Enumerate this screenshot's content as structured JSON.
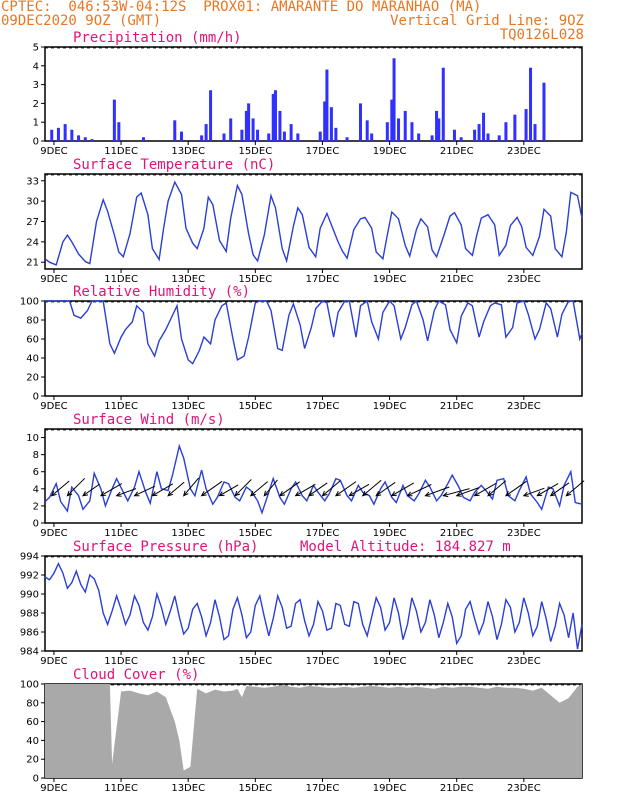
{
  "header": {
    "line1": "CPTEC:  046:53W-04:12S  PROX01: AMARANTE DO MARANHAO (MA)",
    "line2_left": "09DEC2020 9OZ (GMT)",
    "line2_right": "Vertical Grid Line: 9OZ",
    "line3_right": "TQ0126L028"
  },
  "x_ticks": [
    "9DEC",
    "11DEC",
    "13DEC",
    "15DEC",
    "17DEC",
    "19DEC",
    "21DEC",
    "23DEC"
  ],
  "chart_data": [
    {
      "type": "bar",
      "title": "Precipitation (mm/h)",
      "ylim": [
        0,
        5
      ],
      "yticks": [
        0,
        1,
        2,
        3,
        4,
        5
      ],
      "color": "#3030ff",
      "x": [
        0.3,
        0.6,
        0.9,
        1.2,
        1.5,
        1.8,
        2.1,
        3.1,
        3.3,
        4.4,
        5.8,
        6.1,
        7.0,
        7.2,
        7.4,
        8.0,
        8.3,
        8.8,
        9.0,
        9.1,
        9.3,
        9.5,
        10.0,
        10.2,
        10.3,
        10.5,
        10.7,
        11.0,
        11.3,
        12.3,
        12.5,
        12.6,
        12.8,
        13.0,
        13.5,
        14.1,
        14.4,
        14.6,
        15.3,
        15.5,
        15.6,
        15.8,
        16.1,
        16.4,
        16.7,
        17.3,
        17.5,
        17.6,
        17.8,
        18.3,
        18.6,
        19.2,
        19.4,
        19.6,
        19.8,
        20.3,
        20.6,
        21.0,
        21.5,
        21.7,
        21.9,
        22.3
      ],
      "values": [
        0.6,
        0.7,
        0.9,
        0.6,
        0.3,
        0.2,
        0.1,
        2.2,
        1.0,
        0.2,
        1.1,
        0.5,
        0.3,
        0.9,
        2.7,
        0.4,
        1.2,
        0.6,
        1.6,
        2.0,
        1.2,
        0.6,
        0.4,
        2.5,
        2.7,
        1.6,
        0.5,
        0.9,
        0.4,
        0.5,
        2.1,
        3.8,
        1.8,
        0.7,
        0.2,
        2.0,
        1.1,
        0.4,
        1.0,
        2.2,
        4.4,
        1.2,
        1.6,
        1.0,
        0.4,
        0.3,
        1.6,
        1.2,
        3.9,
        0.6,
        0.2,
        0.6,
        0.9,
        1.5,
        0.4,
        0.3,
        1.0,
        1.4,
        1.7,
        3.9,
        0.9,
        3.1
      ]
    },
    {
      "type": "line",
      "title": "Surface Temperature (nC)",
      "ylim": [
        20,
        34
      ],
      "yticks": [
        21,
        24,
        27,
        30,
        33
      ],
      "color": "#2a3fd6",
      "x": [
        0,
        0.2,
        0.5,
        0.8,
        1.0,
        1.2,
        1.5,
        1.8,
        2.0,
        2.3,
        2.6,
        2.8,
        3.1,
        3.3,
        3.5,
        3.8,
        4.1,
        4.3,
        4.6,
        4.8,
        5.1,
        5.3,
        5.5,
        5.8,
        6.1,
        6.3,
        6.6,
        6.8,
        7.1,
        7.3,
        7.5,
        7.8,
        8.1,
        8.3,
        8.6,
        8.8,
        9.1,
        9.3,
        9.5,
        9.8,
        10.1,
        10.3,
        10.6,
        10.8,
        11.1,
        11.3,
        11.5,
        11.8,
        12.1,
        12.3,
        12.6,
        12.8,
        13.1,
        13.3,
        13.5,
        13.8,
        14.1,
        14.3,
        14.6,
        14.8,
        15.1,
        15.3,
        15.5,
        15.8,
        16.1,
        16.3,
        16.6,
        16.8,
        17.1,
        17.3,
        17.5,
        17.8,
        18.1,
        18.3,
        18.6,
        18.8,
        19.1,
        19.3,
        19.5,
        19.8,
        20.1,
        20.3,
        20.6,
        20.8,
        21.1,
        21.3,
        21.5,
        21.8,
        22.1,
        22.3,
        22.6,
        22.8,
        23.1,
        23.3,
        23.5,
        23.8,
        24.0
      ],
      "values": [
        21.5,
        21.0,
        20.6,
        24.0,
        25.0,
        24.0,
        22.2,
        21.1,
        20.8,
        27.0,
        30.2,
        28.5,
        25.0,
        22.5,
        21.8,
        25.2,
        30.6,
        31.2,
        28.0,
        23.0,
        21.4,
        26.0,
        30.0,
        32.8,
        31.0,
        26.0,
        23.8,
        23.0,
        26.0,
        30.6,
        29.5,
        24.2,
        22.6,
        27.5,
        32.3,
        31.0,
        25.2,
        22.1,
        21.2,
        25.0,
        30.8,
        29.0,
        23.0,
        21.2,
        26.3,
        29.0,
        28.0,
        23.2,
        21.8,
        26.0,
        28.2,
        26.5,
        24.0,
        22.6,
        21.6,
        25.8,
        27.4,
        27.6,
        26.0,
        22.5,
        21.5,
        25.0,
        28.4,
        27.4,
        23.5,
        21.9,
        25.8,
        27.4,
        26.2,
        22.8,
        21.8,
        24.7,
        27.8,
        28.3,
        26.5,
        23.0,
        22.0,
        25.0,
        27.5,
        28.0,
        26.5,
        22.0,
        23.5,
        26.4,
        27.6,
        26.3,
        23.2,
        22.0,
        24.8,
        28.8,
        27.8,
        23.0,
        21.8,
        25.4,
        31.3,
        30.8,
        27.5
      ]
    },
    {
      "type": "line",
      "title": "Relative Humidity (%)",
      "ylim": [
        0,
        100
      ],
      "yticks": [
        0,
        20,
        40,
        60,
        80,
        100
      ],
      "color": "#2a3fd6",
      "x": [
        0,
        0.3,
        0.6,
        0.9,
        1.1,
        1.3,
        1.6,
        1.9,
        2.1,
        2.4,
        2.6,
        2.9,
        3.1,
        3.4,
        3.6,
        3.9,
        4.1,
        4.4,
        4.6,
        4.9,
        5.1,
        5.4,
        5.6,
        5.9,
        6.1,
        6.4,
        6.6,
        6.9,
        7.1,
        7.4,
        7.6,
        7.9,
        8.1,
        8.4,
        8.6,
        8.9,
        9.1,
        9.4,
        9.6,
        9.9,
        10.1,
        10.4,
        10.6,
        10.9,
        11.1,
        11.4,
        11.6,
        11.9,
        12.1,
        12.4,
        12.6,
        12.9,
        13.1,
        13.4,
        13.6,
        13.9,
        14.1,
        14.4,
        14.6,
        14.9,
        15.1,
        15.4,
        15.6,
        15.9,
        16.1,
        16.4,
        16.6,
        16.9,
        17.1,
        17.4,
        17.6,
        17.9,
        18.1,
        18.4,
        18.6,
        18.9,
        19.1,
        19.4,
        19.6,
        19.9,
        20.1,
        20.4,
        20.6,
        20.9,
        21.1,
        21.4,
        21.6,
        21.9,
        22.1,
        22.4,
        22.6,
        22.9,
        23.1,
        23.4,
        23.6,
        23.9,
        24.0
      ],
      "values": [
        100,
        100,
        100,
        100,
        100,
        85,
        82,
        90,
        100,
        100,
        100,
        55,
        45,
        62,
        70,
        78,
        95,
        88,
        55,
        42,
        58,
        70,
        80,
        95,
        60,
        38,
        34,
        48,
        62,
        55,
        80,
        95,
        98,
        60,
        38,
        42,
        62,
        98,
        100,
        100,
        90,
        50,
        48,
        85,
        97,
        75,
        50,
        72,
        92,
        100,
        98,
        62,
        88,
        100,
        100,
        62,
        95,
        100,
        78,
        60,
        88,
        100,
        95,
        60,
        72,
        96,
        100,
        80,
        58,
        90,
        100,
        96,
        70,
        56,
        84,
        98,
        95,
        62,
        78,
        95,
        98,
        96,
        62,
        72,
        98,
        100,
        86,
        60,
        70,
        98,
        92,
        62,
        86,
        100,
        100,
        60,
        66
      ]
    },
    {
      "type": "line",
      "title": "Surface Wind (m/s)",
      "ylim": [
        0,
        11
      ],
      "yticks": [
        0,
        2,
        4,
        6,
        8,
        10
      ],
      "color": "#2a3fd6",
      "x": [
        0,
        0.2,
        0.5,
        0.7,
        1.0,
        1.2,
        1.5,
        1.7,
        2.0,
        2.2,
        2.5,
        2.7,
        3.0,
        3.2,
        3.5,
        3.7,
        4.0,
        4.2,
        4.5,
        4.7,
        5.0,
        5.2,
        5.5,
        5.7,
        6.0,
        6.2,
        6.5,
        6.7,
        7.0,
        7.2,
        7.5,
        7.7,
        8.0,
        8.2,
        8.5,
        8.7,
        9.0,
        9.2,
        9.5,
        9.7,
        10.0,
        10.2,
        10.5,
        10.7,
        11.0,
        11.2,
        11.5,
        11.7,
        12.0,
        12.2,
        12.5,
        12.7,
        13.0,
        13.2,
        13.5,
        13.7,
        14.0,
        14.2,
        14.5,
        14.7,
        15.0,
        15.2,
        15.5,
        15.7,
        16.0,
        16.2,
        16.5,
        16.7,
        17.0,
        17.2,
        17.5,
        17.7,
        18.0,
        18.2,
        18.5,
        18.7,
        19.0,
        19.2,
        19.5,
        19.7,
        20.0,
        20.2,
        20.5,
        20.7,
        21.0,
        21.2,
        21.5,
        21.7,
        22.0,
        22.2,
        22.5,
        22.7,
        23.0,
        23.2,
        23.5,
        23.7,
        24.0
      ],
      "values": [
        2.5,
        3.0,
        4.6,
        2.5,
        1.4,
        4.2,
        3.2,
        1.6,
        2.6,
        5.8,
        4.0,
        2.0,
        4.0,
        5.2,
        3.6,
        2.6,
        4.2,
        6.0,
        3.6,
        2.3,
        6.0,
        4.0,
        3.8,
        5.6,
        9.0,
        7.6,
        4.0,
        3.2,
        6.2,
        4.0,
        2.2,
        3.0,
        4.8,
        4.6,
        3.0,
        2.6,
        4.2,
        3.8,
        2.6,
        1.2,
        3.6,
        5.2,
        3.0,
        2.2,
        4.0,
        4.8,
        3.2,
        2.6,
        4.4,
        3.6,
        2.6,
        3.4,
        5.2,
        5.0,
        3.2,
        2.6,
        4.4,
        3.6,
        3.2,
        2.2,
        4.0,
        4.8,
        3.0,
        2.4,
        4.4,
        3.2,
        2.6,
        3.4,
        5.0,
        4.2,
        2.6,
        3.2,
        4.6,
        5.6,
        4.2,
        3.0,
        2.6,
        3.6,
        4.4,
        3.8,
        2.8,
        5.0,
        5.2,
        3.2,
        2.6,
        3.8,
        5.4,
        3.4,
        2.4,
        1.6,
        4.2,
        4.0,
        2.0,
        4.4,
        6.0,
        2.4,
        2.2
      ]
    },
    {
      "type": "line",
      "title": "Surface Pressure (hPa)",
      "subtitle": "Model Altitude: 184.827 m",
      "ylim": [
        984,
        994
      ],
      "yticks": [
        984,
        986,
        988,
        990,
        992,
        994
      ],
      "color": "#2a3fd6",
      "x": [
        0,
        0.2,
        0.4,
        0.6,
        0.8,
        1.0,
        1.2,
        1.4,
        1.6,
        1.8,
        2.0,
        2.2,
        2.4,
        2.6,
        2.8,
        3.0,
        3.2,
        3.4,
        3.6,
        3.8,
        4.0,
        4.2,
        4.4,
        4.6,
        4.8,
        5.0,
        5.2,
        5.4,
        5.6,
        5.8,
        6.0,
        6.2,
        6.4,
        6.6,
        6.8,
        7.0,
        7.2,
        7.4,
        7.6,
        7.8,
        8.0,
        8.2,
        8.4,
        8.6,
        8.8,
        9.0,
        9.2,
        9.4,
        9.6,
        9.8,
        10.0,
        10.2,
        10.4,
        10.6,
        10.8,
        11.0,
        11.2,
        11.4,
        11.6,
        11.8,
        12.0,
        12.2,
        12.4,
        12.6,
        12.8,
        13.0,
        13.2,
        13.4,
        13.6,
        13.8,
        14.0,
        14.2,
        14.4,
        14.6,
        14.8,
        15.0,
        15.2,
        15.4,
        15.6,
        15.8,
        16.0,
        16.2,
        16.4,
        16.6,
        16.8,
        17.0,
        17.2,
        17.4,
        17.6,
        17.8,
        18.0,
        18.2,
        18.4,
        18.6,
        18.8,
        19.0,
        19.2,
        19.4,
        19.6,
        19.8,
        20.0,
        20.2,
        20.4,
        20.6,
        20.8,
        21.0,
        21.2,
        21.4,
        21.6,
        21.8,
        22.0,
        22.2,
        22.4,
        22.6,
        22.8,
        23.0,
        23.2,
        23.4,
        23.6,
        23.8,
        24.0
      ],
      "values": [
        991.8,
        991.5,
        992.2,
        993.2,
        992.2,
        990.6,
        991.2,
        992.4,
        991.0,
        990.2,
        992.0,
        991.6,
        990.4,
        988.0,
        986.8,
        988.2,
        989.8,
        988.4,
        986.8,
        987.8,
        989.8,
        988.8,
        987.0,
        986.2,
        987.6,
        990.0,
        988.6,
        986.8,
        988.2,
        989.8,
        987.6,
        985.8,
        986.4,
        988.4,
        989.0,
        987.6,
        985.6,
        987.0,
        989.4,
        987.6,
        985.2,
        985.6,
        988.4,
        989.6,
        987.8,
        985.4,
        986.0,
        988.8,
        989.8,
        987.6,
        985.6,
        987.4,
        989.8,
        988.6,
        986.4,
        986.6,
        989.0,
        989.4,
        987.2,
        985.6,
        986.8,
        989.2,
        988.2,
        986.2,
        986.4,
        989.0,
        988.8,
        986.8,
        986.6,
        989.2,
        989.0,
        986.8,
        985.6,
        987.6,
        989.6,
        988.6,
        986.2,
        987.0,
        989.6,
        988.0,
        985.2,
        986.8,
        989.6,
        988.2,
        986.0,
        987.0,
        989.4,
        987.8,
        985.4,
        987.0,
        989.0,
        987.6,
        984.8,
        985.6,
        988.4,
        989.2,
        987.4,
        985.8,
        987.0,
        989.2,
        987.6,
        985.2,
        986.8,
        989.4,
        988.6,
        986.0,
        987.0,
        989.6,
        988.0,
        985.6,
        986.6,
        989.2,
        987.4,
        985.0,
        986.6,
        989.0,
        987.8,
        985.4,
        988.0,
        984.2,
        986.8
      ]
    },
    {
      "type": "area",
      "title": "Cloud Cover (%)",
      "ylim": [
        0,
        100
      ],
      "yticks": [
        0,
        20,
        40,
        60,
        80,
        100
      ],
      "color": "#a9a9a9",
      "x": [
        0,
        0.5,
        1.0,
        1.5,
        2.0,
        2.5,
        2.9,
        3.0,
        3.4,
        3.8,
        4.2,
        4.6,
        5.0,
        5.4,
        5.8,
        6.0,
        6.2,
        6.5,
        6.8,
        7.2,
        7.6,
        8.0,
        8.4,
        8.6,
        8.8,
        9.0,
        9.4,
        9.8,
        10.2,
        10.6,
        11.0,
        11.4,
        11.8,
        12.2,
        12.6,
        13.0,
        13.4,
        13.8,
        14.2,
        14.6,
        15.0,
        15.4,
        15.8,
        16.2,
        16.6,
        17.0,
        17.4,
        17.8,
        18.2,
        18.6,
        19.0,
        19.4,
        19.8,
        20.2,
        20.6,
        21.0,
        21.4,
        21.8,
        22.2,
        22.6,
        23.0,
        23.4,
        23.8,
        24.0
      ],
      "values": [
        100,
        100,
        100,
        100,
        100,
        100,
        100,
        15,
        92,
        93,
        90,
        88,
        92,
        86,
        60,
        40,
        8,
        12,
        95,
        90,
        94,
        92,
        93,
        95,
        86,
        98,
        97,
        96,
        97,
        99,
        97,
        96,
        98,
        97,
        96,
        96,
        97,
        96,
        97,
        98,
        97,
        96,
        97,
        96,
        97,
        96,
        95,
        97,
        96,
        97,
        97,
        96,
        95,
        97,
        96,
        96,
        95,
        93,
        96,
        88,
        80,
        85,
        97,
        100
      ]
    }
  ],
  "wind_vectors": {
    "x": [
      0.3,
      1.0,
      1.7,
      2.5,
      3.2,
      4.0,
      4.8,
      5.5,
      6.2,
      7.0,
      7.8,
      8.5,
      9.2,
      9.8,
      10.5,
      11.2,
      11.8,
      12.4,
      13.0,
      13.6,
      14.2,
      14.8,
      15.5,
      16.2,
      17.0,
      17.8,
      18.4,
      19.2,
      19.8,
      20.6,
      21.4,
      22.0,
      22.6,
      23.3
    ],
    "dir_deg": [
      220,
      225,
      215,
      210,
      200,
      205,
      210,
      220,
      230,
      215,
      210,
      225,
      220,
      230,
      215,
      210,
      215,
      220,
      215,
      210,
      220,
      215,
      210,
      205,
      200,
      195,
      200,
      210,
      220,
      215,
      200,
      210,
      215,
      220
    ],
    "speed": [
      4.0,
      4.8,
      2.8,
      4.6,
      3.0,
      3.8,
      4.4,
      3.2,
      4.2,
      5.0,
      3.4,
      4.0,
      3.6,
      3.0,
      4.6,
      4.0,
      3.8,
      4.2,
      4.8,
      4.0,
      4.6,
      4.2,
      5.2,
      5.6,
      5.2,
      6.0,
      4.4,
      4.8,
      4.2,
      5.0,
      3.6,
      4.6,
      3.8,
      4.2
    ],
    "color": "#000000"
  }
}
